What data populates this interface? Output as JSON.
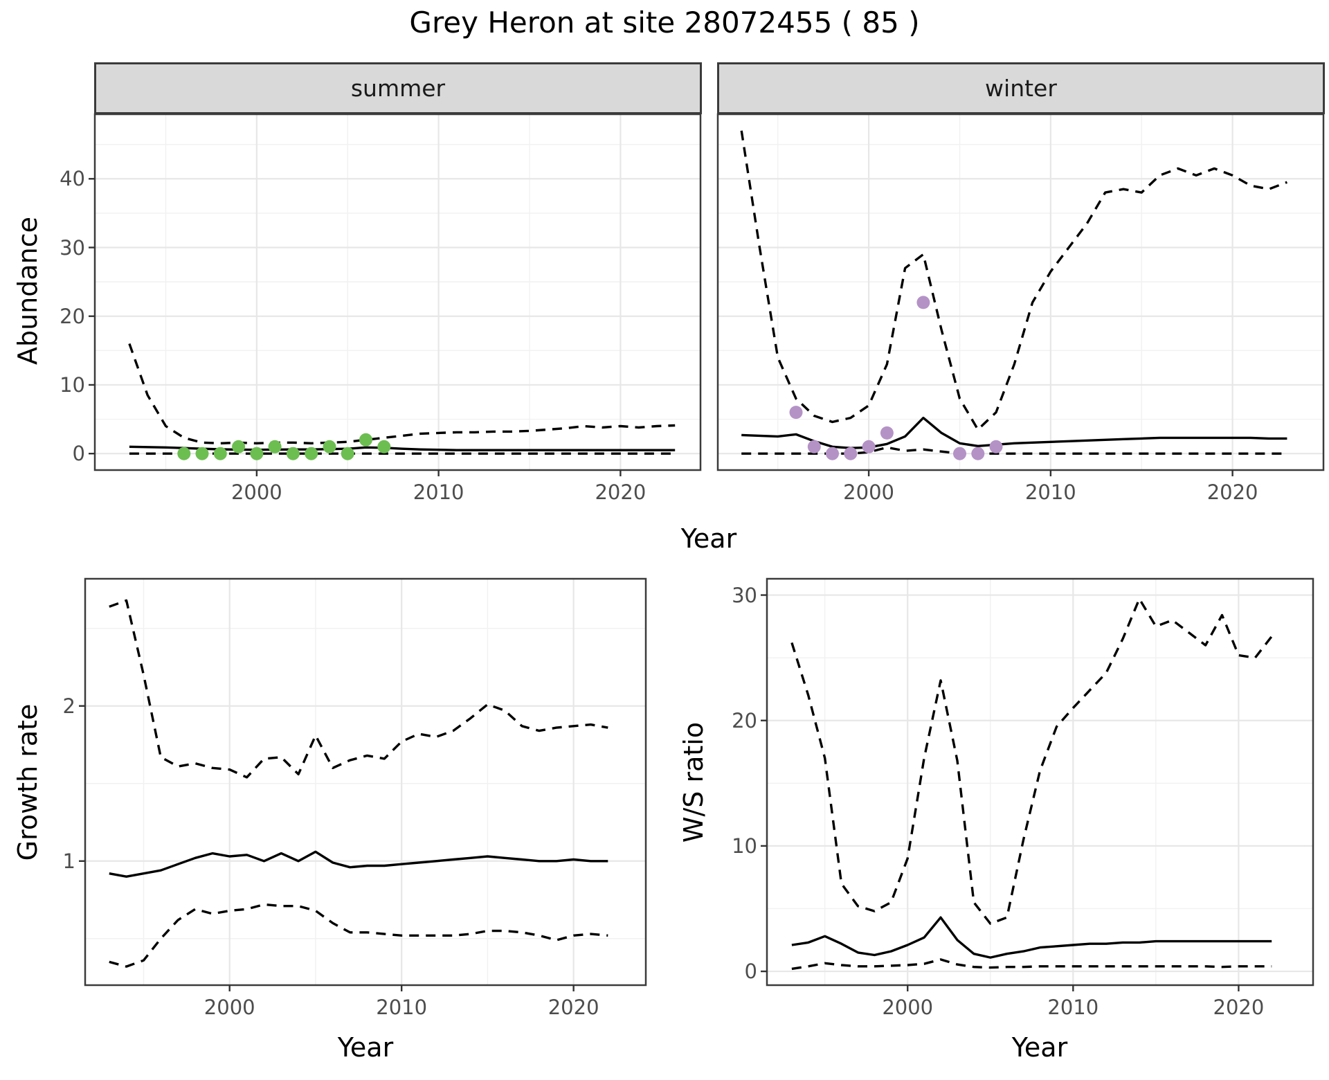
{
  "title": "Grey Heron at site 28072455 ( 85 )",
  "colors": {
    "summer_points": "#6CBE50",
    "winter_points": "#B492C6",
    "line": "#000000",
    "grid_major": "#E7E7E7",
    "grid_minor": "#F1F1F1",
    "panel_border": "#3B3B3B",
    "tick_mark": "#333333",
    "tick_text": "#4D4D4D",
    "strip_bg": "#D9D9D9"
  },
  "chart_data": [
    {
      "type": "line",
      "facet_label": "summer",
      "xlabel": "Year",
      "ylabel": "Abundance",
      "x_range": [
        1991.1,
        2024.4
      ],
      "y_range": [
        -2.4,
        49.4
      ],
      "xticks": [
        2000,
        2010,
        2020
      ],
      "xticks_minor": [
        1995,
        2005,
        2015
      ],
      "yticks": [
        0,
        10,
        20,
        30,
        40
      ],
      "yticks_minor": [
        5,
        15,
        25,
        35,
        45
      ],
      "grid": true,
      "legend": "none",
      "years": [
        1993,
        1994,
        1995,
        1996,
        1997,
        1998,
        1999,
        2000,
        2001,
        2002,
        2003,
        2004,
        2005,
        2006,
        2007,
        2008,
        2009,
        2010,
        2011,
        2012,
        2013,
        2014,
        2015,
        2016,
        2017,
        2018,
        2019,
        2020,
        2021,
        2022,
        2023
      ],
      "series": [
        {
          "name": "median",
          "line": "solid",
          "values": [
            1.0,
            0.95,
            0.9,
            0.8,
            0.7,
            0.62,
            0.58,
            0.55,
            0.58,
            0.6,
            0.6,
            0.65,
            0.7,
            0.9,
            0.85,
            0.7,
            0.6,
            0.55,
            0.5,
            0.5,
            0.5,
            0.5,
            0.5,
            0.5,
            0.5,
            0.5,
            0.5,
            0.5,
            0.5,
            0.5,
            0.5
          ]
        },
        {
          "name": "upper-ci",
          "line": "dashed",
          "values": [
            16,
            8.5,
            4,
            2.3,
            1.6,
            1.5,
            1.6,
            1.5,
            1.6,
            1.6,
            1.5,
            1.6,
            1.7,
            2.0,
            2.3,
            2.6,
            2.9,
            3.0,
            3.1,
            3.1,
            3.2,
            3.2,
            3.3,
            3.5,
            3.7,
            4.0,
            3.8,
            4.0,
            3.8,
            4.0,
            4.1
          ]
        },
        {
          "name": "lower-ci",
          "line": "dashed",
          "values": [
            0,
            0,
            0,
            0,
            0,
            0,
            0,
            0,
            0,
            0,
            0,
            0,
            0,
            0,
            0,
            0,
            0,
            0,
            0,
            0,
            0,
            0,
            0,
            0,
            0,
            0,
            0,
            0,
            0,
            0,
            0
          ]
        }
      ],
      "observed_points": {
        "name": "summer observations",
        "color_key": "summer_points",
        "years": [
          1996,
          1997,
          1998,
          1999,
          2000,
          2001,
          2002,
          2003,
          2004,
          2005,
          2006,
          2007
        ],
        "values": [
          0,
          0,
          0,
          1,
          0,
          1,
          0,
          0,
          1,
          0,
          2,
          1
        ]
      }
    },
    {
      "type": "line",
      "facet_label": "winter",
      "xlabel": "Year",
      "ylabel": "Abundance",
      "x_range": [
        1991.7,
        2025.0
      ],
      "y_range": [
        -2.4,
        49.4
      ],
      "xticks": [
        2000,
        2010,
        2020
      ],
      "xticks_minor": [
        1995,
        2005,
        2015
      ],
      "yticks": [
        0,
        10,
        20,
        30,
        40
      ],
      "yticks_minor": [
        5,
        15,
        25,
        35,
        45
      ],
      "grid": true,
      "legend": "none",
      "years": [
        1993,
        1994,
        1995,
        1996,
        1997,
        1998,
        1999,
        2000,
        2001,
        2002,
        2003,
        2004,
        2005,
        2006,
        2007,
        2008,
        2009,
        2010,
        2011,
        2012,
        2013,
        2014,
        2015,
        2016,
        2017,
        2018,
        2019,
        2020,
        2021,
        2022,
        2023
      ],
      "series": [
        {
          "name": "median",
          "line": "solid",
          "values": [
            2.7,
            2.6,
            2.5,
            2.8,
            1.8,
            1.0,
            0.8,
            0.9,
            1.4,
            2.5,
            5.2,
            3.0,
            1.5,
            1.1,
            1.3,
            1.5,
            1.6,
            1.7,
            1.8,
            1.9,
            2.0,
            2.1,
            2.2,
            2.3,
            2.3,
            2.3,
            2.3,
            2.3,
            2.3,
            2.2,
            2.2
          ]
        },
        {
          "name": "upper-ci",
          "line": "dashed",
          "values": [
            47,
            30,
            14,
            8,
            5.5,
            4.6,
            5.2,
            7,
            13,
            27,
            29,
            18,
            8,
            3.5,
            6,
            13,
            22,
            26.5,
            30,
            33.5,
            38,
            38.5,
            38,
            40.5,
            41.5,
            40.5,
            41.5,
            40.5,
            39,
            38.5,
            39.5
          ]
        },
        {
          "name": "lower-ci",
          "line": "dashed",
          "values": [
            0,
            0,
            0,
            0,
            0,
            0,
            0,
            0.2,
            0.9,
            0.4,
            0.6,
            0.3,
            0,
            0,
            0,
            0,
            0,
            0,
            0,
            0,
            0,
            0,
            0,
            0,
            0,
            0,
            0,
            0,
            0,
            0,
            0
          ]
        }
      ],
      "observed_points": {
        "name": "winter observations",
        "color_key": "winter_points",
        "years": [
          1996,
          1997,
          1998,
          1999,
          2000,
          2001,
          2003,
          2005,
          2006,
          2007
        ],
        "values": [
          6,
          1,
          0,
          0,
          1,
          3,
          22,
          0,
          0,
          1
        ]
      }
    },
    {
      "type": "line",
      "xlabel": "Year",
      "ylabel": "Growth rate",
      "x_range": [
        1991.6,
        2024.2
      ],
      "y_range": [
        0.2,
        2.82
      ],
      "xticks": [
        2000,
        2010,
        2020
      ],
      "xticks_minor": [
        1995,
        2005,
        2015
      ],
      "yticks": [
        1,
        2
      ],
      "yticks_minor": [
        0.5,
        1.5,
        2.5
      ],
      "grid": true,
      "legend": "none",
      "years": [
        1993,
        1994,
        1995,
        1996,
        1997,
        1998,
        1999,
        2000,
        2001,
        2002,
        2003,
        2004,
        2005,
        2006,
        2007,
        2008,
        2009,
        2010,
        2011,
        2012,
        2013,
        2014,
        2015,
        2016,
        2017,
        2018,
        2019,
        2020,
        2021,
        2022
      ],
      "series": [
        {
          "name": "median",
          "line": "solid",
          "values": [
            0.92,
            0.9,
            0.92,
            0.94,
            0.98,
            1.02,
            1.05,
            1.03,
            1.04,
            1.0,
            1.05,
            1.0,
            1.06,
            0.99,
            0.96,
            0.97,
            0.97,
            0.98,
            0.99,
            1.0,
            1.01,
            1.02,
            1.03,
            1.02,
            1.01,
            1.0,
            1.0,
            1.01,
            1.0,
            1.0
          ]
        },
        {
          "name": "upper-ci",
          "line": "dashed",
          "values": [
            2.64,
            2.68,
            2.2,
            1.67,
            1.61,
            1.63,
            1.6,
            1.59,
            1.54,
            1.66,
            1.67,
            1.56,
            1.81,
            1.6,
            1.65,
            1.68,
            1.66,
            1.77,
            1.82,
            1.8,
            1.84,
            1.92,
            2.01,
            1.97,
            1.87,
            1.84,
            1.86,
            1.87,
            1.88,
            1.86
          ]
        },
        {
          "name": "lower-ci",
          "line": "dashed",
          "values": [
            0.35,
            0.32,
            0.36,
            0.5,
            0.62,
            0.69,
            0.66,
            0.68,
            0.69,
            0.72,
            0.71,
            0.71,
            0.68,
            0.6,
            0.54,
            0.54,
            0.53,
            0.52,
            0.52,
            0.52,
            0.52,
            0.53,
            0.55,
            0.55,
            0.54,
            0.52,
            0.49,
            0.52,
            0.53,
            0.52
          ]
        }
      ]
    },
    {
      "type": "line",
      "xlabel": "Year",
      "ylabel": "W/S ratio",
      "x_range": [
        1991.5,
        2024.5
      ],
      "y_range": [
        -1.1,
        31.3
      ],
      "xticks": [
        2000,
        2010,
        2020
      ],
      "xticks_minor": [
        1995,
        2005,
        2015
      ],
      "yticks": [
        0,
        10,
        20,
        30
      ],
      "yticks_minor": [
        5,
        15,
        25
      ],
      "grid": true,
      "legend": "none",
      "years": [
        1993,
        1994,
        1995,
        1996,
        1997,
        1998,
        1999,
        2000,
        2001,
        2002,
        2003,
        2004,
        2005,
        2006,
        2007,
        2008,
        2009,
        2010,
        2011,
        2012,
        2013,
        2014,
        2015,
        2016,
        2017,
        2018,
        2019,
        2020,
        2021,
        2022
      ],
      "series": [
        {
          "name": "median",
          "line": "solid",
          "values": [
            2.1,
            2.3,
            2.8,
            2.2,
            1.5,
            1.3,
            1.6,
            2.1,
            2.7,
            4.3,
            2.5,
            1.4,
            1.1,
            1.4,
            1.6,
            1.9,
            2.0,
            2.1,
            2.2,
            2.2,
            2.3,
            2.3,
            2.4,
            2.4,
            2.4,
            2.4,
            2.4,
            2.4,
            2.4,
            2.4
          ]
        },
        {
          "name": "upper-ci",
          "line": "dashed",
          "values": [
            26.2,
            22.0,
            17.0,
            7.0,
            5.2,
            4.8,
            5.5,
            9.0,
            17.0,
            23.2,
            16.8,
            5.5,
            3.8,
            4.3,
            10.5,
            16.0,
            19.5,
            21.0,
            22.4,
            23.8,
            26.5,
            29.7,
            27.5,
            28.0,
            27.0,
            26.0,
            28.4,
            25.2,
            25.0,
            26.7
          ]
        },
        {
          "name": "lower-ci",
          "line": "dashed",
          "values": [
            0.2,
            0.4,
            0.65,
            0.5,
            0.4,
            0.4,
            0.45,
            0.5,
            0.6,
            0.95,
            0.55,
            0.35,
            0.3,
            0.35,
            0.35,
            0.4,
            0.4,
            0.4,
            0.4,
            0.4,
            0.4,
            0.4,
            0.4,
            0.4,
            0.4,
            0.4,
            0.35,
            0.4,
            0.4,
            0.4
          ]
        }
      ]
    }
  ]
}
